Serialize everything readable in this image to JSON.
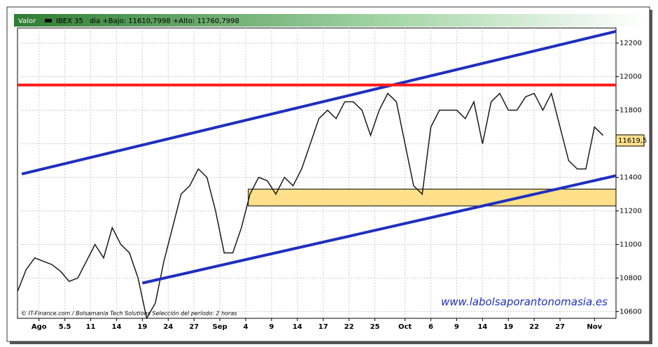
{
  "chart_data": {
    "type": "line",
    "header_label": "Valor",
    "instrument": "IBEX 35",
    "header_info": "dia +Bajo: 11610,7998 +Alto: 11760,7998",
    "footer": "© IT-Finance.com / Bolsamania Tech Solutions  Selección del período: 2 horas",
    "watermark": "www.labolsaporantonomasia.es",
    "series": [
      {
        "name": "IBEX 35",
        "color": "#1a1a1a",
        "x": [
          0,
          1,
          2,
          3,
          4,
          5,
          6,
          7,
          8,
          9,
          10,
          11,
          12,
          13,
          14,
          15,
          16,
          17,
          18,
          19,
          20,
          21,
          22,
          23,
          24,
          25,
          26,
          27,
          28,
          29,
          30,
          31,
          32,
          33,
          34,
          35,
          36,
          37,
          38,
          39,
          40,
          41,
          42,
          43,
          44,
          45,
          46,
          47,
          48,
          49,
          50,
          51,
          52,
          53,
          54,
          55,
          56,
          57,
          58,
          59,
          60,
          61,
          62,
          63,
          64,
          65,
          66,
          67,
          68
        ],
        "values": [
          10720,
          10850,
          10920,
          10900,
          10880,
          10840,
          10780,
          10800,
          10900,
          11000,
          10920,
          11100,
          11000,
          10950,
          10800,
          10560,
          10650,
          10900,
          11100,
          11300,
          11350,
          11450,
          11400,
          11200,
          10950,
          10950,
          11100,
          11300,
          11400,
          11380,
          11300,
          11400,
          11350,
          11450,
          11600,
          11750,
          11800,
          11750,
          11850,
          11850,
          11800,
          11650,
          11800,
          11900,
          11850,
          11600,
          11350,
          11300,
          11700,
          11800,
          11800,
          11800,
          11750,
          11850,
          11600,
          11850,
          11900,
          11800,
          11800,
          11880,
          11900,
          11800,
          11900,
          11700,
          11500,
          11450,
          11450,
          11700,
          11650
        ]
      }
    ],
    "trend_lines": [
      {
        "color": "#1f2fbf",
        "x": [
          0.5,
          69.5
        ],
        "values": [
          11420,
          12270
        ]
      },
      {
        "color": "#1f2fbf",
        "x": [
          14.5,
          69.5
        ],
        "values": [
          10770,
          11410
        ]
      },
      {
        "color": "#ff1a1a",
        "x": [
          0,
          69.5
        ],
        "values": [
          11950,
          11950
        ]
      }
    ],
    "zone": {
      "color": "#ffe08a",
      "x": [
        26.8,
        69.5
      ],
      "values": [
        11230,
        11330
      ]
    },
    "last_price": {
      "value": 11619.5,
      "label": "11619,5"
    },
    "xlim": [
      0,
      69.5
    ],
    "xticks": [
      {
        "value": 2.5,
        "label": "Ago"
      },
      5.5,
      {
        "value": 8.5,
        "label": "11"
      },
      {
        "value": 11.5,
        "label": "14"
      },
      {
        "value": 14.5,
        "label": "19"
      },
      {
        "value": 17.5,
        "label": "24"
      },
      {
        "value": 20.5,
        "label": "27"
      },
      {
        "value": 23.5,
        "label": "Sep"
      },
      {
        "value": 26.5,
        "label": "4"
      },
      {
        "value": 29.5,
        "label": "9"
      },
      {
        "value": 32.5,
        "label": "14"
      },
      {
        "value": 35.5,
        "label": "17"
      },
      {
        "value": 38.5,
        "label": "22"
      },
      {
        "value": 41.5,
        "label": "25"
      },
      {
        "value": 45,
        "label": "Oct"
      },
      {
        "value": 48,
        "label": "6"
      },
      {
        "value": 51,
        "label": "9"
      },
      {
        "value": 54,
        "label": "14"
      },
      {
        "value": 57,
        "label": "19"
      },
      {
        "value": 60,
        "label": "22"
      },
      {
        "value": 63,
        "label": "27"
      },
      {
        "value": 67,
        "label": "Nov"
      }
    ],
    "ylim": [
      10560,
      12290
    ],
    "yticks": [
      10600,
      10800,
      11000,
      11200,
      11400,
      11600,
      11800,
      12000,
      12200
    ],
    "grid": true
  }
}
